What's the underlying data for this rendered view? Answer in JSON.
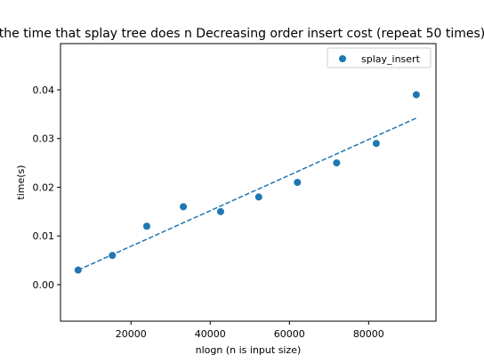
{
  "chart_data": {
    "type": "scatter",
    "title": "the time that splay tree does n Decreasing order insert cost (repeat 50 times)",
    "xlabel": "nlogn (n is input size)",
    "ylabel": "time(s)",
    "xlim": [
      2200,
      97000
    ],
    "ylim": [
      -0.0075,
      0.0495
    ],
    "x_ticks": [
      20000,
      40000,
      60000,
      80000
    ],
    "y_ticks": [
      0.0,
      0.01,
      0.02,
      0.03,
      0.04
    ],
    "x_tick_labels": [
      "20000",
      "40000",
      "60000",
      "80000"
    ],
    "y_tick_labels": [
      "0.00",
      "0.01",
      "0.02",
      "0.03",
      "0.04"
    ],
    "grid": false,
    "legend": {
      "position": "top-right",
      "entries": [
        "splay_insert"
      ]
    },
    "series": [
      {
        "name": "splay_insert",
        "marker": "circle",
        "color": "#1f77b4",
        "x": [
          6644,
          15290,
          23986,
          33219,
          42627,
          52245,
          62020,
          71920,
          81920,
          92034
        ],
        "y": [
          0.003,
          0.006,
          0.012,
          0.016,
          0.015,
          0.018,
          0.021,
          0.025,
          0.029,
          0.039
        ]
      }
    ],
    "trendline": {
      "style": "dashed",
      "color": "#1f77b4",
      "x": [
        6644,
        92034
      ],
      "y": [
        0.003,
        0.0342
      ]
    }
  }
}
